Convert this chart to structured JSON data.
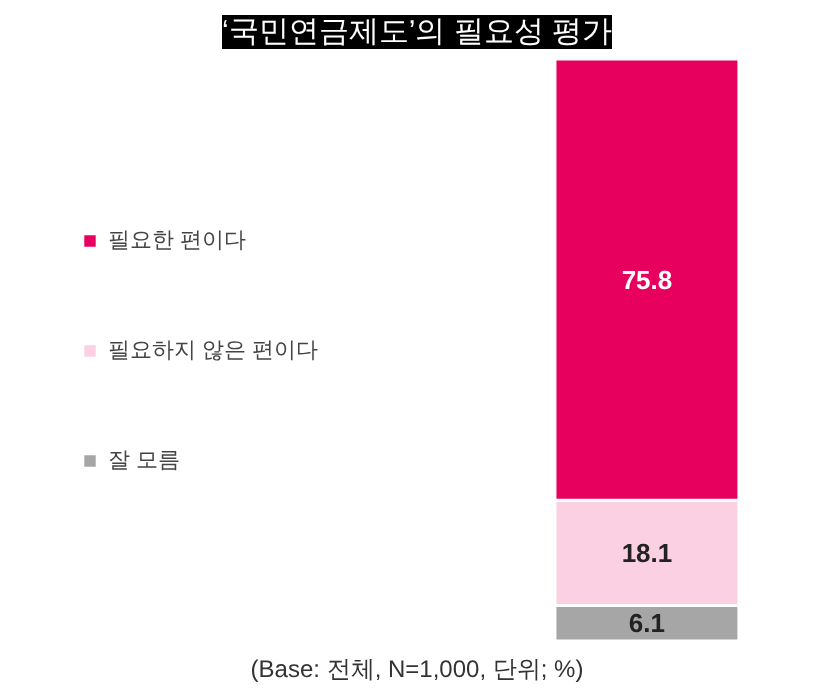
{
  "chart_data": {
    "type": "bar",
    "stacked": true,
    "title": "‘국민연금제도’의 필요성 평가",
    "categories": [
      null
    ],
    "series": [
      {
        "name": "잘 모름",
        "color": "#a6a6a6",
        "values": [
          6.1
        ]
      },
      {
        "name": "필요하지 않은 편이다",
        "color": "#fbd0e3",
        "values": [
          18.1
        ]
      },
      {
        "name": "필요한 편이다",
        "color": "#e8005f",
        "values": [
          75.8
        ]
      }
    ],
    "data_labels": true,
    "legend": "left",
    "grid": false,
    "tick_labels": false,
    "annotations": [
      "(Base: 전체, N=1,000, 단위; %)"
    ]
  }
}
